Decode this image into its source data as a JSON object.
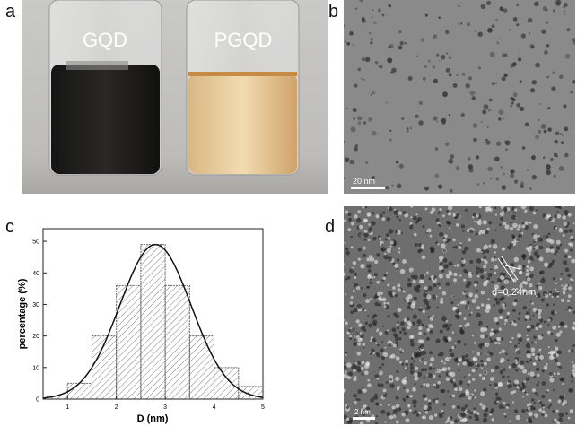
{
  "panels": {
    "a": {
      "label": "a",
      "vial_left": "GQD",
      "vial_right": "PGQD"
    },
    "b": {
      "label": "b",
      "scale_bar": "20 nm"
    },
    "c": {
      "label": "c"
    },
    "d": {
      "label": "d",
      "annotation": "d=0.24nm",
      "scale_bar": "2 nm"
    }
  },
  "chart_data": {
    "type": "bar",
    "subtype": "histogram-with-gaussian-fit",
    "xlabel": "D (nm)",
    "ylabel": "percentage (%)",
    "xlim": [
      0.5,
      5
    ],
    "ylim": [
      0,
      54
    ],
    "xticks": [
      1,
      2,
      3,
      4,
      5
    ],
    "yticks": [
      0,
      10,
      20,
      30,
      40,
      50
    ],
    "bins": [
      [
        0.5,
        1
      ],
      [
        1,
        1.5
      ],
      [
        1.5,
        2
      ],
      [
        2,
        2.5
      ],
      [
        2.5,
        3
      ],
      [
        3,
        3.5
      ],
      [
        3.5,
        4
      ],
      [
        4,
        4.5
      ],
      [
        4.5,
        5
      ]
    ],
    "values": [
      1,
      5,
      20,
      36,
      49,
      36,
      20,
      10,
      4
    ],
    "fit": {
      "type": "gaussian",
      "center": 2.8,
      "peak": 49,
      "sigma": 0.73
    },
    "grid": false,
    "fill": "diagonal-hatch"
  }
}
